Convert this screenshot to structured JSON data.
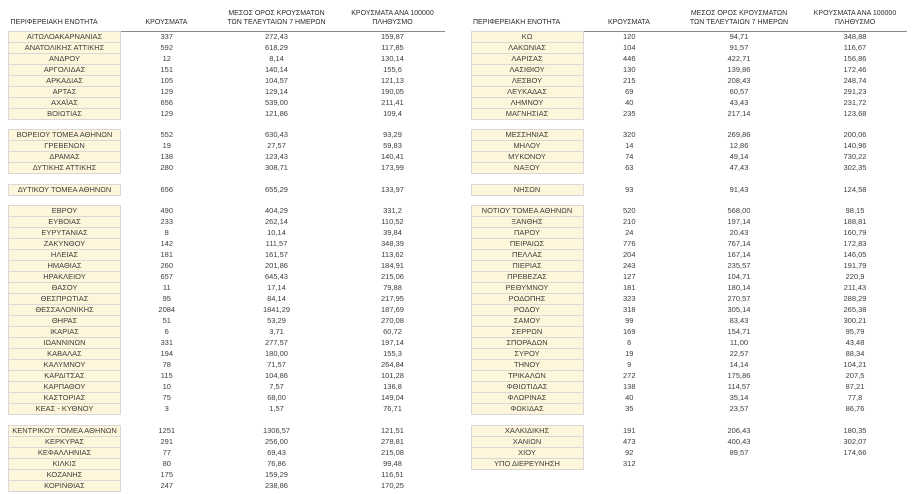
{
  "colors": {
    "region_cell_bg": "#FDF6DA"
  },
  "headers": {
    "region": "ΠΕΡΙΦΕΡΕΙΑΚΗ ΕΝΟΤΗΤΑ",
    "cases": "ΚΡΟΥΣΜΑΤΑ",
    "avg7_line1": "ΜΕΣΟΣ ΟΡΟΣ ΚΡΟΥΣΜΑΤΩΝ",
    "avg7_line2": "ΤΩΝ ΤΕΛΕΥΤΑΙΩΝ 7 ΗΜΕΡΩΝ",
    "per100k_line1": "ΚΡΟΥΣΜΑΤΑ ΑΝΑ 100000",
    "per100k_line2": "ΠΛΗΘΥΣΜΟ"
  },
  "left_table": {
    "rows": [
      [
        "ΑΙΤΩΛΟΑΚΑΡΝΑΝΙΑΣ",
        "337",
        "272,43",
        "159,87"
      ],
      [
        "ΑΝΑΤΟΛΙΚΗΣ ΑΤΤΙΚΗΣ",
        "592",
        "618,29",
        "117,85"
      ],
      [
        "ΑΝΔΡΟΥ",
        "12",
        "8,14",
        "130,14"
      ],
      [
        "ΑΡΓΟΛΙΔΑΣ",
        "151",
        "140,14",
        "155,6"
      ],
      [
        "ΑΡΚΑΔΙΑΣ",
        "105",
        "104,57",
        "121,13"
      ],
      [
        "ΑΡΤΑΣ",
        "129",
        "129,14",
        "190,05"
      ],
      [
        "ΑΧΑΪΑΣ",
        "656",
        "539,00",
        "211,41"
      ],
      [
        "ΒΟΙΩΤΙΑΣ",
        "129",
        "121,86",
        "109,4"
      ],
      [
        "",
        "",
        "",
        ""
      ],
      [
        "ΒΟΡΕΙΟΥ ΤΟΜΕΑ ΑΘΗΝΩΝ",
        "552",
        "630,43",
        "93,29"
      ],
      [
        "ΓΡΕΒΕΝΩΝ",
        "19",
        "27,57",
        "59,83"
      ],
      [
        "ΔΡΑΜΑΣ",
        "138",
        "123,43",
        "140,41"
      ],
      [
        "ΔΥΤΙΚΗΣ ΑΤΤΙΚΗΣ",
        "280",
        "308,71",
        "173,99"
      ],
      [
        "",
        "",
        "",
        ""
      ],
      [
        "ΔΥΤΙΚΟΥ ΤΟΜΕΑ ΑΘΗΝΩΝ",
        "656",
        "655,29",
        "133,97"
      ],
      [
        "",
        "",
        "",
        ""
      ],
      [
        "ΕΒΡΟΥ",
        "490",
        "404,29",
        "331,2"
      ],
      [
        "ΕΥΒΟΙΑΣ",
        "233",
        "262,14",
        "110,52"
      ],
      [
        "ΕΥΡΥΤΑΝΙΑΣ",
        "8",
        "10,14",
        "39,84"
      ],
      [
        "ΖΑΚΥΝΘΟΥ",
        "142",
        "111,57",
        "348,39"
      ],
      [
        "ΗΛΕΙΑΣ",
        "181",
        "161,57",
        "113,62"
      ],
      [
        "ΗΜΑΘΙΑΣ",
        "260",
        "201,86",
        "184,91"
      ],
      [
        "ΗΡΑΚΛΕΙΟΥ",
        "657",
        "645,43",
        "215,06"
      ],
      [
        "ΘΑΣΟΥ",
        "11",
        "17,14",
        "79,88"
      ],
      [
        "ΘΕΣΠΡΩΤΙΑΣ",
        "95",
        "84,14",
        "217,95"
      ],
      [
        "ΘΕΣΣΑΛΟΝΙΚΗΣ",
        "2084",
        "1841,29",
        "187,69"
      ],
      [
        "ΘΗΡΑΣ",
        "51",
        "53,29",
        "270,08"
      ],
      [
        "ΙΚΑΡΙΑΣ",
        "6",
        "3,71",
        "60,72"
      ],
      [
        "ΙΩΑΝΝΙΝΩΝ",
        "331",
        "277,57",
        "197,14"
      ],
      [
        "ΚΑΒΑΛΑΣ",
        "194",
        "180,00",
        "155,3"
      ],
      [
        "ΚΑΛΥΜΝΟΥ",
        "78",
        "71,57",
        "264,84"
      ],
      [
        "ΚΑΡΔΙΤΣΑΣ",
        "115",
        "104,86",
        "101,28"
      ],
      [
        "ΚΑΡΠΑΘΟΥ",
        "10",
        "7,57",
        "136,8"
      ],
      [
        "ΚΑΣΤΟΡΙΑΣ",
        "75",
        "68,00",
        "149,04"
      ],
      [
        "ΚΕΑΣ - ΚΥΘΝΟΥ",
        "3",
        "1,57",
        "76,71"
      ],
      [
        "",
        "",
        "",
        ""
      ],
      [
        "ΚΕΝΤΡΙΚΟΥ ΤΟΜΕΑ ΑΘΗΝΩΝ",
        "1251",
        "1306,57",
        "121,51"
      ],
      [
        "ΚΕΡΚΥΡΑΣ",
        "291",
        "256,00",
        "278,81"
      ],
      [
        "ΚΕΦΑΛΛΗΝΙΑΣ",
        "77",
        "69,43",
        "215,08"
      ],
      [
        "ΚΙΛΚΙΣ",
        "80",
        "76,86",
        "99,48"
      ],
      [
        "ΚΟΖΑΝΗΣ",
        "175",
        "159,29",
        "116,51"
      ],
      [
        "ΚΟΡΙΝΘΙΑΣ",
        "247",
        "238,86",
        "170,25"
      ]
    ]
  },
  "right_table": {
    "rows": [
      [
        "ΚΩ",
        "120",
        "94,71",
        "348,88"
      ],
      [
        "ΛΑΚΩΝΙΑΣ",
        "104",
        "91,57",
        "116,67"
      ],
      [
        "ΛΑΡΙΣΑΣ",
        "446",
        "422,71",
        "156,86"
      ],
      [
        "ΛΑΣΙΘΙΟΥ",
        "130",
        "139,86",
        "172,46"
      ],
      [
        "ΛΕΣΒΟΥ",
        "215",
        "208,43",
        "248,74"
      ],
      [
        "ΛΕΥΚΑΔΑΣ",
        "69",
        "60,57",
        "291,23"
      ],
      [
        "ΛΗΜΝΟΥ",
        "40",
        "43,43",
        "231,72"
      ],
      [
        "ΜΑΓΝΗΣΙΑΣ",
        "235",
        "217,14",
        "123,68"
      ],
      [
        "",
        "",
        "",
        ""
      ],
      [
        "ΜΕΣΣΗΝΙΑΣ",
        "320",
        "269,86",
        "200,06"
      ],
      [
        "ΜΗΛΟΥ",
        "14",
        "12,86",
        "140,96"
      ],
      [
        "ΜΥΚΟΝΟΥ",
        "74",
        "49,14",
        "730,22"
      ],
      [
        "ΝΑΞΟΥ",
        "63",
        "47,43",
        "302,35"
      ],
      [
        "",
        "",
        "",
        ""
      ],
      [
        "ΝΗΣΩΝ",
        "93",
        "91,43",
        "124,58"
      ],
      [
        "",
        "",
        "",
        ""
      ],
      [
        "ΝΟΤΙΟΥ ΤΟΜΕΑ ΑΘΗΝΩΝ",
        "520",
        "568,00",
        "98,15"
      ],
      [
        "ΞΑΝΘΗΣ",
        "210",
        "197,14",
        "188,81"
      ],
      [
        "ΠΑΡΟΥ",
        "24",
        "20,43",
        "160,79"
      ],
      [
        "ΠΕΙΡΑΙΩΣ",
        "776",
        "767,14",
        "172,83"
      ],
      [
        "ΠΕΛΛΑΣ",
        "204",
        "167,14",
        "146,05"
      ],
      [
        "ΠΙΕΡΙΑΣ",
        "243",
        "235,57",
        "191,79"
      ],
      [
        "ΠΡΕΒΕΖΑΣ",
        "127",
        "104,71",
        "220,9"
      ],
      [
        "ΡΕΘΥΜΝΟΥ",
        "181",
        "180,14",
        "211,43"
      ],
      [
        "ΡΟΔΟΠΗΣ",
        "323",
        "270,57",
        "288,29"
      ],
      [
        "ΡΟΔΟΥ",
        "318",
        "305,14",
        "265,38"
      ],
      [
        "ΣΑΜΟΥ",
        "99",
        "83,43",
        "300,21"
      ],
      [
        "ΣΕΡΡΩΝ",
        "169",
        "154,71",
        "95,79"
      ],
      [
        "ΣΠΟΡΑΔΩΝ",
        "6",
        "11,00",
        "43,48"
      ],
      [
        "ΣΥΡΟΥ",
        "19",
        "22,57",
        "88,34"
      ],
      [
        "ΤΗΝΟΥ",
        "9",
        "14,14",
        "104,21"
      ],
      [
        "ΤΡΙΚΑΛΩΝ",
        "272",
        "175,86",
        "207,5"
      ],
      [
        "ΦΘΙΩΤΙΔΑΣ",
        "138",
        "114,57",
        "87,21"
      ],
      [
        "ΦΛΩΡΙΝΑΣ",
        "40",
        "35,14",
        "77,8"
      ],
      [
        "ΦΩΚΙΔΑΣ",
        "35",
        "23,57",
        "86,76"
      ],
      [
        "",
        "",
        "",
        ""
      ],
      [
        "ΧΑΛΚΙΔΙΚΗΣ",
        "191",
        "206,43",
        "180,35"
      ],
      [
        "ΧΑΝΙΩΝ",
        "473",
        "400,43",
        "302,07"
      ],
      [
        "ΧΙΟΥ",
        "92",
        "89,57",
        "174,66"
      ],
      [
        "ΥΠΟ ΔΙΕΡΕΥΝΗΣΗ",
        "312",
        "",
        ""
      ]
    ]
  }
}
